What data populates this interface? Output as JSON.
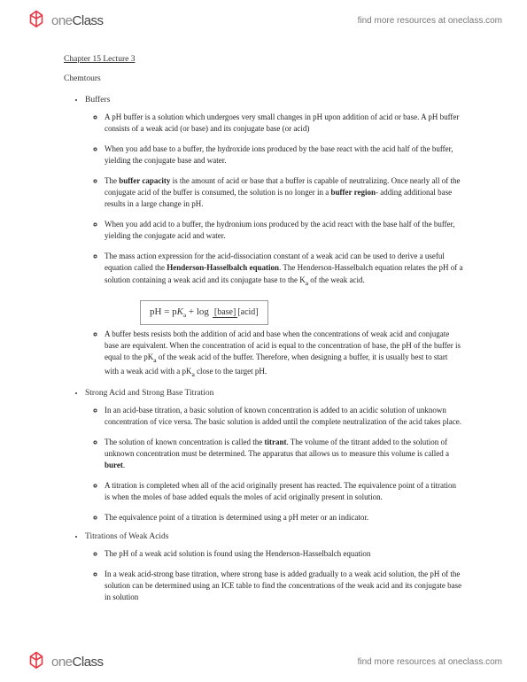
{
  "header": {
    "logo_one": "one",
    "logo_class": "Class",
    "link": "find more resources at oneclass.com"
  },
  "title": "Chapter 15 Lecture 3",
  "subtitle": "Chemtours",
  "sections": [
    {
      "heading": "Buffers",
      "items": [
        "A pH buffer is a solution which undergoes very small changes in pH upon addition of acid or base. A pH buffer consists of a weak acid (or base) and its conjugate base (or acid)",
        "When you add base to a buffer, the hydroxide ions produced by the base react with the acid half of the buffer, yielding the conjugate base and water.",
        "The <span class=\"bold\">buffer capacity</span> is the amount of acid or base that a buffer is capable of neutralizing. Once nearly all of the conjugate acid of the buffer is consumed, the solution is no longer in a <span class=\"bold\">buffer region</span>- adding additional base results in a large change in pH.",
        "When you add acid to a buffer, the hydronium ions produced by the acid react with the base half of the buffer, yielding the conjugate acid and water.",
        "The mass action expression for the acid-dissociation constant of a weak acid can be used to derive a useful equation called the <span class=\"bold\">Henderson-Hasselbalch equation</span>. The Henderson-Hasselbalch equation relates the pH of a solution containing a weak acid and its conjugate base to the K<sub>a</sub> of the weak acid.",
        "FORMULA",
        "A buffer bests resists both the addition of acid and base when the concentrations of weak acid and conjugate base are equivalent. When the concentration of acid is equal to the concentration of base, the pH of the buffer is equal to the pK<sub>a</sub> of the weak acid of the buffer. Therefore, when designing a buffer, it is usually best to start with a weak acid with a pK<sub>a</sub> close to the target pH."
      ]
    },
    {
      "heading": "Strong Acid and Strong Base Titration",
      "items": [
        "In an acid-base titration, a basic solution of known concentration is added to an acidic solution of unknown concentration of vice versa. The basic solution is added until the complete neutralization of the acid takes place.",
        "The solution of known concentration is called the <span class=\"bold\">titrant</span>. The volume of the titrant added to the solution of unknown concentration must be determined. The apparatus that allows us to measure this volume is called a <span class=\"bold\">buret</span>.",
        "A titration is completed when all of the acid originally present has reacted. The equivalence point of a titration is when the moles of base added equals the moles of acid originally present in solution.",
        "The equivalence point of a titration is determined using a pH meter or an indicator."
      ]
    },
    {
      "heading": "Titrations of Weak Acids",
      "items": [
        "The pH of a weak acid solution is found using the Henderson-Hasselbalch equation",
        "In a weak acid-strong base titration, where strong base is added gradually to a weak acid solution, the pH of the solution can be determined using an ICE table to find the concentrations of the weak acid and its conjugate base in solution"
      ]
    }
  ],
  "formula": {
    "lhs": "pH = p",
    "K": "K",
    "sub": "a",
    "plus": " + log",
    "num": "[base]",
    "den": "[acid]"
  }
}
